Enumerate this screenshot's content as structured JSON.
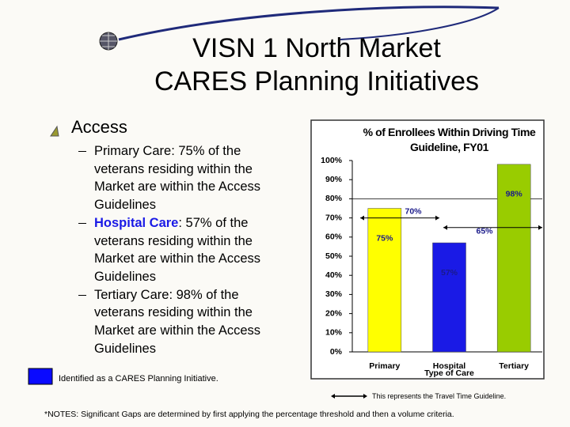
{
  "slide": {
    "title_lines": [
      "VISN 1 North Market",
      "CARES Planning Initiatives"
    ],
    "bullet": "Access",
    "sub_bullets": [
      {
        "label": "Primary Care",
        "text": ": 75% of the veterans residing within the Market are within the Access Guidelines"
      },
      {
        "label": "Hospital Care",
        "text": ": 57% of the veterans residing within the Market are within the Access Guidelines"
      },
      {
        "label": "Tertiary Care",
        "text": ": 98% of the veterans residing within the Market are within the Access Guidelines"
      }
    ],
    "legend_initiative": "Identified as a CARES Planning Initiative.",
    "legend_guideline": "This represents the Travel Time Guideline.",
    "notes": "*NOTES:  Significant Gaps are determined by first applying the percentage threshold and then a volume criteria."
  },
  "chart_data": {
    "type": "bar",
    "title": "% of Enrollees Within Driving Time Guideline, FY01",
    "x_label": "Type of Care",
    "categories": [
      "Primary",
      "Hospital",
      "Tertiary"
    ],
    "values": [
      75,
      57,
      98
    ],
    "value_labels": [
      "75%",
      "57%",
      "98%"
    ],
    "colors": [
      "#ffff00",
      "#1a1ae6",
      "#99cc00"
    ],
    "ylim": [
      0,
      100
    ],
    "yticks": [
      {
        "value": 0,
        "label": "0%"
      },
      {
        "value": 10,
        "label": "10%"
      },
      {
        "value": 20,
        "label": "20%"
      },
      {
        "value": 30,
        "label": "30%"
      },
      {
        "value": 40,
        "label": "40%"
      },
      {
        "value": 50,
        "label": "50%"
      },
      {
        "value": 60,
        "label": "60%"
      },
      {
        "value": 70,
        "label": "70%"
      },
      {
        "value": 80,
        "label": "80%"
      },
      {
        "value": 90,
        "label": "90%"
      },
      {
        "value": 100,
        "label": "100%"
      }
    ],
    "guidelines": [
      {
        "value": 70,
        "label": "70%"
      },
      {
        "value": 65,
        "label": "65%"
      }
    ]
  }
}
